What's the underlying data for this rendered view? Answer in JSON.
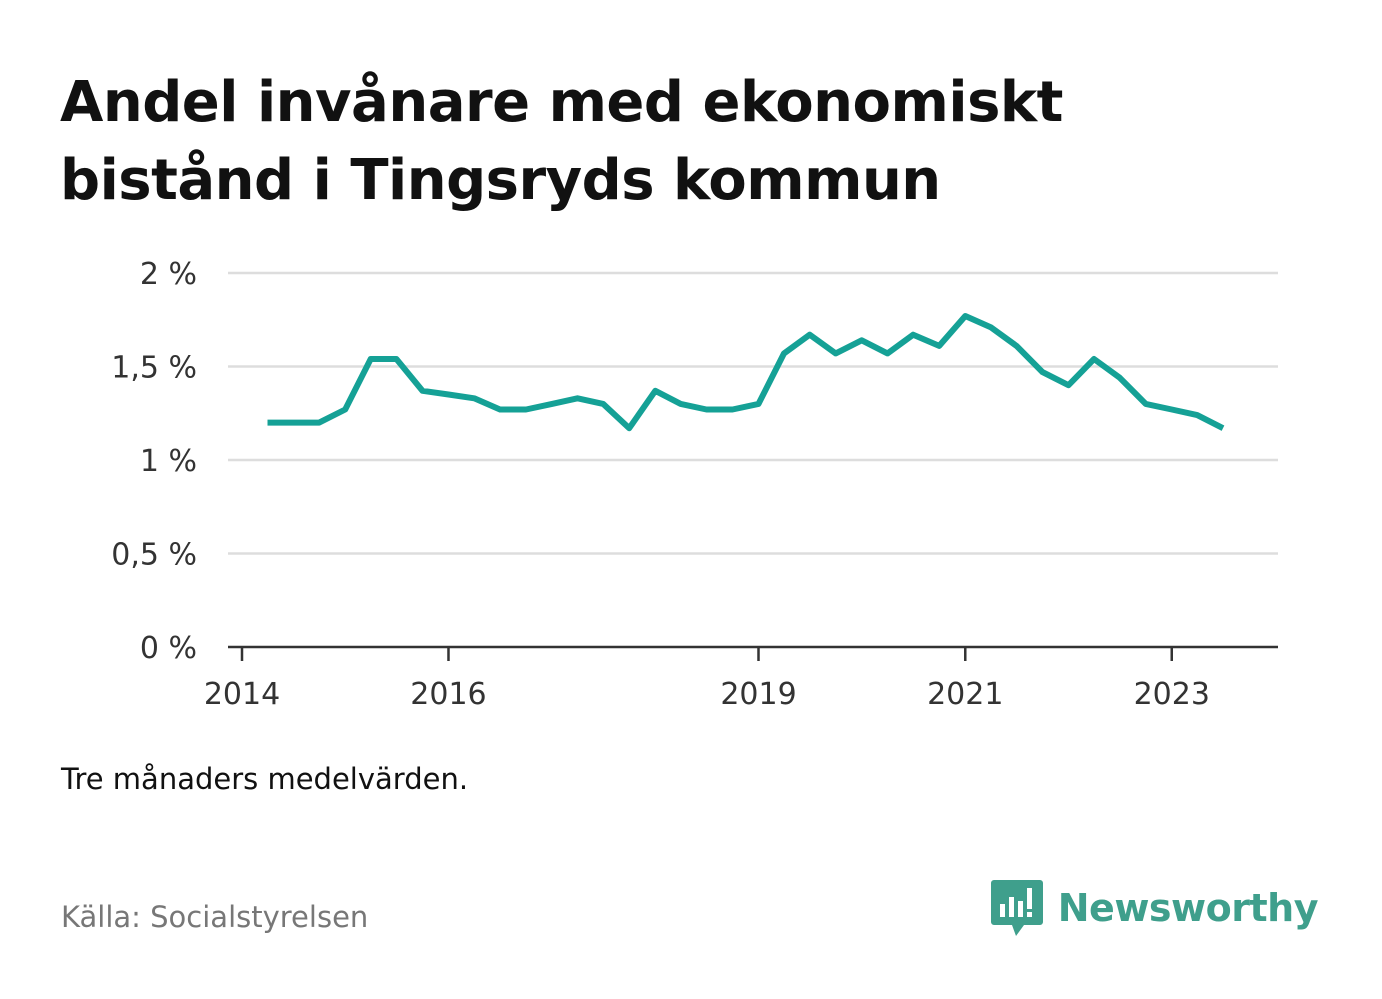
{
  "title": "Andel invånare med ekonomiskt bistånd i Tingsryds kommun",
  "note": "Tre månaders medelvärden.",
  "source": "Källa: Socialstyrelsen",
  "brand": {
    "name": "Newsworthy",
    "icon": "newsworthy-logo-icon",
    "color": "#3f9f8c"
  },
  "chart_data": {
    "type": "line",
    "title": "Andel invånare med ekonomiskt bistånd i Tingsryds kommun",
    "xlabel": "",
    "ylabel": "",
    "ylim": [
      0,
      2
    ],
    "xlim": [
      "2014-01-01",
      "2024-01-01"
    ],
    "grid": true,
    "line_color": "#15a196",
    "y_ticks": [
      {
        "value": 0,
        "label": "0 %"
      },
      {
        "value": 0.5,
        "label": "0,5 %"
      },
      {
        "value": 1,
        "label": "1 %"
      },
      {
        "value": 1.5,
        "label": "1,5 %"
      },
      {
        "value": 2,
        "label": "2 %"
      }
    ],
    "x_ticks": [
      {
        "date": "2014-01-01",
        "label": "2014"
      },
      {
        "date": "2016-01-01",
        "label": "2016"
      },
      {
        "date": "2019-01-01",
        "label": "2019"
      },
      {
        "date": "2021-01-01",
        "label": "2021"
      },
      {
        "date": "2023-01-01",
        "label": "2023"
      }
    ],
    "series": [
      {
        "x": [
          "2014-04-01",
          "2014-07-01",
          "2014-10-01",
          "2015-01-01",
          "2015-04-01",
          "2015-07-01",
          "2015-10-01",
          "2016-01-01",
          "2016-04-01",
          "2016-07-01",
          "2016-10-01",
          "2017-01-01",
          "2017-04-01",
          "2017-07-01",
          "2017-10-01",
          "2018-01-01",
          "2018-04-01",
          "2018-07-01",
          "2018-10-01",
          "2019-01-01",
          "2019-04-01",
          "2019-07-01",
          "2019-10-01",
          "2020-01-01",
          "2020-04-01",
          "2020-07-01",
          "2020-10-01",
          "2021-01-01",
          "2021-04-01",
          "2021-07-01",
          "2021-10-01",
          "2022-01-01",
          "2022-04-01",
          "2022-07-01",
          "2022-10-01",
          "2023-01-01",
          "2023-04-01",
          "2023-07-01"
        ],
        "values": [
          1.2,
          1.2,
          1.2,
          1.27,
          1.54,
          1.54,
          1.37,
          1.35,
          1.33,
          1.27,
          1.27,
          1.3,
          1.33,
          1.3,
          1.17,
          1.37,
          1.3,
          1.27,
          1.27,
          1.3,
          1.57,
          1.67,
          1.57,
          1.64,
          1.57,
          1.67,
          1.61,
          1.77,
          1.71,
          1.61,
          1.47,
          1.4,
          1.54,
          1.44,
          1.3,
          1.27,
          1.24,
          1.17
        ]
      }
    ]
  }
}
